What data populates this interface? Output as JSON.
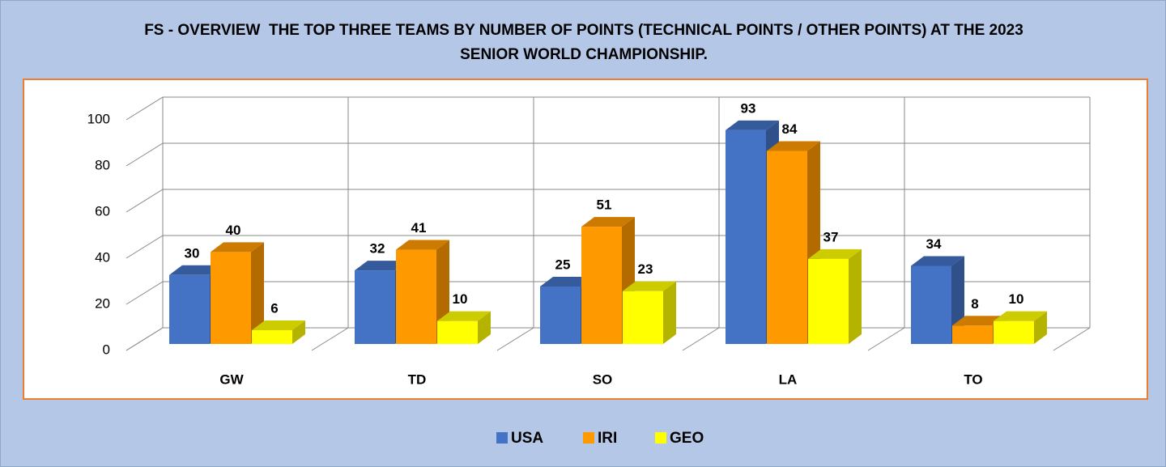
{
  "chart_data": {
    "type": "bar3d",
    "title": "FS - OVERVIEW  THE TOP THREE TEAMS BY NUMBER OF POINTS (TECHNICAL POINTS / OTHER POINTS) AT THE 2023 SENIOR WORLD CHAMPIONSHIP.",
    "categories": [
      "GW",
      "TD",
      "SO",
      "LA",
      "TO"
    ],
    "series": [
      {
        "name": "USA",
        "color": "#4472c4",
        "values": [
          30,
          32,
          25,
          93,
          34
        ]
      },
      {
        "name": "IRI",
        "color": "#ff9900",
        "values": [
          40,
          41,
          51,
          84,
          8
        ]
      },
      {
        "name": "GEO",
        "color": "#ffff00",
        "values": [
          6,
          10,
          23,
          37,
          10
        ]
      }
    ],
    "ylim": [
      0,
      100
    ],
    "yticks": [
      0,
      20,
      40,
      60,
      80,
      100
    ],
    "grid": true,
    "legend": "bottom"
  }
}
